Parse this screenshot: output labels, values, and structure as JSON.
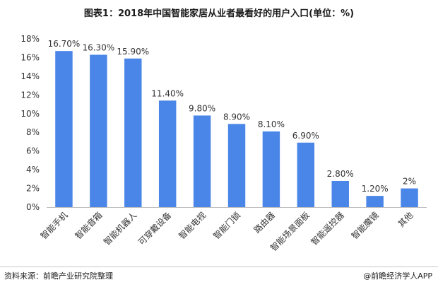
{
  "chart_data": {
    "type": "bar",
    "title": "图表1：2018年中国智能家居从业者最看好的用户入口(单位：%)",
    "categories": [
      "智能手机",
      "智能音箱",
      "智能机器人",
      "可穿戴设备",
      "智能电视",
      "智能门锁",
      "路由器",
      "智能场景面板",
      "智能遥控器",
      "智能魔镜",
      "其他"
    ],
    "values": [
      16.7,
      16.3,
      15.9,
      11.4,
      9.8,
      8.9,
      8.1,
      6.9,
      2.8,
      1.2,
      2
    ],
    "data_labels": [
      "16.70%",
      "16.30%",
      "15.90%",
      "11.40%",
      "9.80%",
      "8.90%",
      "8.10%",
      "6.90%",
      "2.80%",
      "1.20%",
      "2%"
    ],
    "y_ticks": [
      "0%",
      "2%",
      "4%",
      "6%",
      "8%",
      "10%",
      "12%",
      "14%",
      "16%",
      "18%"
    ],
    "ylim": [
      0,
      18
    ],
    "bar_color": "#4a86e8",
    "grid": false,
    "xlabel": "",
    "ylabel": ""
  },
  "footer": {
    "source": "资料来源：前瞻产业研究院整理",
    "brand": "@前瞻经济学人APP"
  }
}
